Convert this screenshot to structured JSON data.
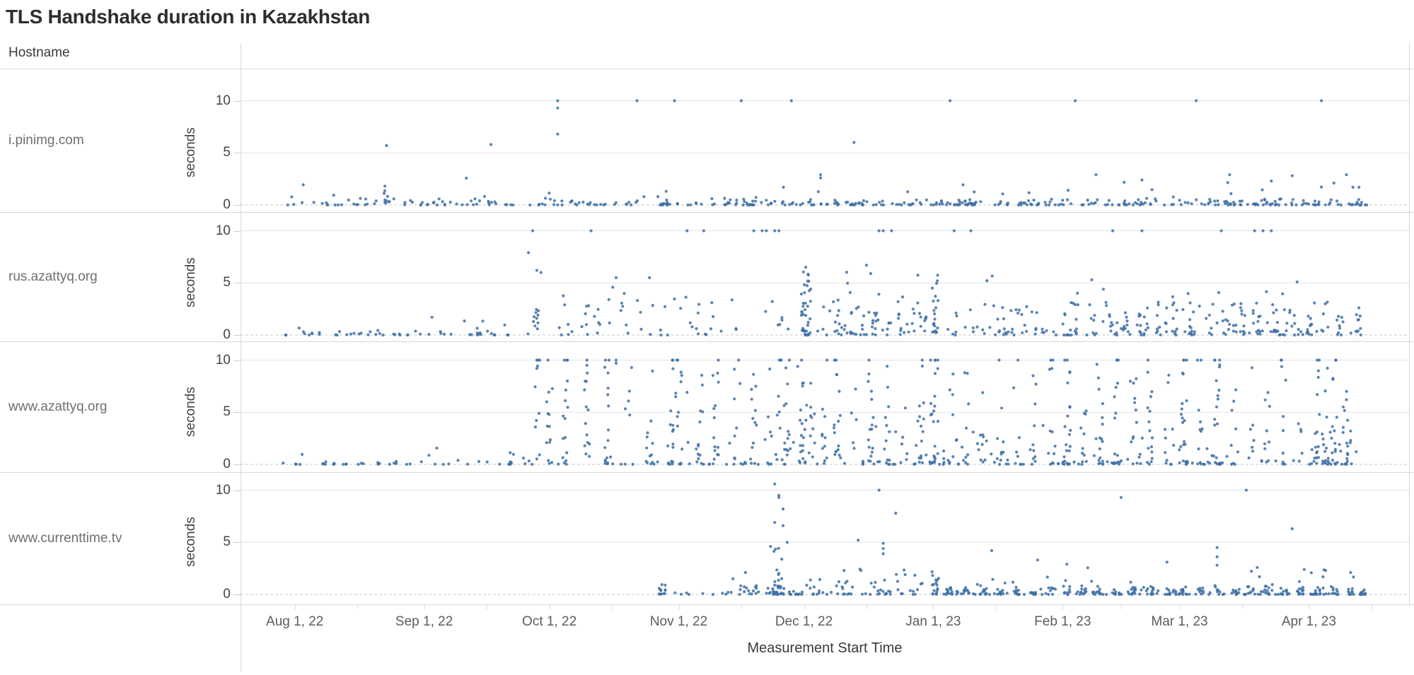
{
  "title": "TLS Handshake duration in Kazakhstan",
  "hostname_header": "Hostname",
  "point_color": "#3d6ea5",
  "colors": {
    "gridline": "#e4e4e4",
    "zero_line": "#c8c8c8",
    "separator": "#d7d7d7",
    "title_text": "#2e2e2e",
    "label_text": "#6f6f6f",
    "axis_text": "#454545"
  },
  "chart_data": {
    "type": "scatter",
    "title": "TLS Handshake duration in Kazakhstan",
    "facet_column": "Hostname",
    "x_axis": {
      "label": "Measurement Start Time",
      "domain_start": "2022-07-19",
      "domain_end": "2023-04-25",
      "ticks": [
        {
          "label": "Aug 1, 22",
          "day": 13
        },
        {
          "label": "Sep 1, 22",
          "day": 44
        },
        {
          "label": "Oct 1, 22",
          "day": 74
        },
        {
          "label": "Nov 1, 22",
          "day": 105
        },
        {
          "label": "Dec 1, 22",
          "day": 135
        },
        {
          "label": "Jan 1, 23",
          "day": 166
        },
        {
          "label": "Feb 1, 23",
          "day": 197
        },
        {
          "label": "Mar 1, 23",
          "day": 225
        },
        {
          "label": "Apr 1, 23",
          "day": 256
        }
      ],
      "minor_tick_days": [
        28,
        59,
        89,
        120,
        150,
        181,
        211,
        240,
        271
      ]
    },
    "y_axis": {
      "label": "seconds",
      "ticks": [
        10,
        5,
        0
      ],
      "gridline_values": [
        10,
        5
      ],
      "zero_line_dashed": true,
      "range": [
        0,
        11
      ]
    },
    "facets": [
      {
        "hostname": "i.pinimg.com",
        "clusters": [
          {
            "kind": "floor",
            "d0": 10,
            "d1": 74,
            "n": 60,
            "ymax": 0.5
          },
          {
            "kind": "floor",
            "d0": 74,
            "d1": 135,
            "n": 85,
            "ymax": 0.5
          },
          {
            "kind": "floor",
            "d0": 135,
            "d1": 270,
            "n": 240,
            "ymax": 0.55
          },
          {
            "kind": "band",
            "d0": 12,
            "d1": 270,
            "n": 42,
            "ymin": 0.55,
            "ymax": 2.6,
            "bias": 2.4
          },
          {
            "kind": "col",
            "d": 35,
            "n": 7,
            "ymin": 0,
            "ymax": 1.9,
            "bias": 1.6,
            "jx": 1.5
          }
        ],
        "outliers": [
          [
            35,
            5.7
          ],
          [
            60,
            5.8
          ],
          [
            76,
            10
          ],
          [
            76,
            9.3
          ],
          [
            76,
            6.8
          ],
          [
            95,
            10
          ],
          [
            104,
            10
          ],
          [
            120,
            10
          ],
          [
            132,
            10
          ],
          [
            139,
            2.9
          ],
          [
            139,
            2.6
          ],
          [
            147,
            6.0
          ],
          [
            170,
            10
          ],
          [
            200,
            10
          ],
          [
            229,
            10
          ],
          [
            259,
            10
          ],
          [
            205,
            2.9
          ],
          [
            216,
            2.4
          ],
          [
            237,
            2.9
          ],
          [
            247,
            2.3
          ],
          [
            252,
            2.8
          ],
          [
            262,
            2.1
          ],
          [
            265,
            2.9
          ],
          [
            268,
            1.7
          ]
        ]
      },
      {
        "hostname": "rus.azattyq.org",
        "clusters": [
          {
            "kind": "floor",
            "d0": 10,
            "d1": 70,
            "n": 50,
            "ymax": 0.45
          },
          {
            "kind": "band",
            "d0": 14,
            "d1": 70,
            "n": 6,
            "ymin": 0.6,
            "ymax": 2.0,
            "bias": 1.8
          },
          {
            "kind": "col",
            "d": 71,
            "n": 10,
            "ymin": 0,
            "ymax": 4.0,
            "bias": 1.5,
            "jx": 2
          },
          {
            "kind": "band",
            "d0": 76,
            "d1": 133,
            "n": 55,
            "ymin": 0,
            "ymax": 3.4,
            "bias": 2.1
          },
          {
            "kind": "band",
            "d0": 76,
            "d1": 133,
            "n": 6,
            "ymin": 3.4,
            "ymax": 4.8,
            "bias": 1.5
          },
          {
            "kind": "col",
            "d": 135.5,
            "n": 38,
            "ymin": 0,
            "ymax": 7.0,
            "bias": 1.9,
            "jx": 2.4
          },
          {
            "kind": "band",
            "d0": 138,
            "d1": 165,
            "n": 40,
            "ymin": 0,
            "ymax": 3.2,
            "bias": 2.0
          },
          {
            "kind": "band",
            "d0": 140,
            "d1": 165,
            "n": 8,
            "ymin": 3.2,
            "ymax": 6.2,
            "bias": 1.6
          },
          {
            "kind": "colseries",
            "days": [
              140,
              143,
              146,
              149,
              152,
              155,
              158,
              161,
              164
            ],
            "nmin": 2,
            "nmax": 5,
            "ymax": 3.0,
            "bias": 1.8,
            "jx": 1.0,
            "p10": 0
          },
          {
            "kind": "col",
            "d": 166.5,
            "n": 20,
            "ymin": 0,
            "ymax": 6.2,
            "bias": 1.8,
            "jx": 1.6
          },
          {
            "kind": "band",
            "d0": 169,
            "d1": 270,
            "n": 110,
            "ymin": 0.3,
            "ymax": 3.0,
            "bias": 1.7
          },
          {
            "kind": "floor",
            "d0": 169,
            "d1": 270,
            "n": 50,
            "ymax": 0.4
          },
          {
            "kind": "band",
            "d0": 172,
            "d1": 268,
            "n": 18,
            "ymin": 3.0,
            "ymax": 5.8,
            "bias": 1.7
          },
          {
            "kind": "colseries",
            "days": [
              200,
              204,
              208,
              212,
              216,
              220,
              224,
              228,
              232,
              236,
              240,
              244,
              248,
              252,
              256,
              260,
              264,
              268
            ],
            "nmin": 3,
            "nmax": 8,
            "ymax": 3.2,
            "bias": 1.7,
            "jx": 1.4,
            "p10": 0
          }
        ],
        "outliers": [
          [
            70,
            10
          ],
          [
            69,
            7.9
          ],
          [
            71,
            6.2
          ],
          [
            72,
            6.0
          ],
          [
            84,
            10
          ],
          [
            90,
            5.5
          ],
          [
            98,
            5.5
          ],
          [
            107,
            10
          ],
          [
            111,
            10
          ],
          [
            123,
            10
          ],
          [
            125,
            10
          ],
          [
            126,
            10
          ],
          [
            128,
            10
          ],
          [
            129,
            10
          ],
          [
            150,
            6.7
          ],
          [
            151,
            5.9
          ],
          [
            153,
            10
          ],
          [
            154,
            10
          ],
          [
            156,
            10
          ],
          [
            171,
            10
          ],
          [
            175,
            10
          ],
          [
            209,
            10
          ],
          [
            216,
            10
          ],
          [
            235,
            10
          ],
          [
            243,
            10
          ],
          [
            245,
            10
          ],
          [
            247,
            10
          ]
        ]
      },
      {
        "hostname": "www.azattyq.org",
        "clusters": [
          {
            "kind": "floor",
            "d0": 10,
            "d1": 70,
            "n": 42,
            "ymax": 0.45
          },
          {
            "kind": "band",
            "d0": 14,
            "d1": 70,
            "n": 4,
            "ymin": 0.6,
            "ymax": 1.6,
            "bias": 1.8
          },
          {
            "kind": "col",
            "d": 65,
            "n": 6,
            "ymin": 0,
            "ymax": 1.5,
            "bias": 1.6,
            "jx": 1
          },
          {
            "kind": "colseries",
            "days": [
              71,
              74,
              78,
              83,
              88,
              93,
              98,
              103,
              105,
              110,
              114,
              119,
              123,
              127,
              129,
              131,
              134,
              135,
              137,
              140,
              143,
              147,
              151,
              155,
              159,
              163,
              166,
              167,
              170,
              174,
              178,
              182,
              186,
              190,
              194,
              198,
              202,
              206,
              210,
              214,
              218,
              222,
              226,
              230,
              234,
              238,
              242,
              246,
              250,
              254,
              258,
              260,
              262,
              265
            ],
            "nmin": 5,
            "nmax": 15,
            "ymax": 9.6,
            "bias": 1.8,
            "jx": 1.6,
            "p10": 0.55
          },
          {
            "kind": "band",
            "d0": 105,
            "d1": 268,
            "n": 100,
            "ymin": 0,
            "ymax": 3.8,
            "bias": 2.2
          },
          {
            "kind": "floor",
            "d0": 74,
            "d1": 268,
            "n": 70,
            "ymax": 0.35
          }
        ],
        "outliers": [
          [
            71,
            10
          ],
          [
            71,
            9.2
          ],
          [
            83,
            10
          ],
          [
            83,
            9.5
          ],
          [
            90,
            9.7
          ],
          [
            90,
            10
          ],
          [
            107,
            6.9
          ],
          [
            265,
            6.2
          ],
          [
            266,
            3.2
          ],
          [
            266,
            2.3
          ]
        ]
      },
      {
        "hostname": "www.currenttime.tv",
        "clusters": [
          {
            "kind": "col",
            "d": 101,
            "n": 12,
            "ymin": 0,
            "ymax": 1.25,
            "bias": 1.7,
            "jx": 1.6
          },
          {
            "kind": "floor",
            "d0": 104,
            "d1": 117,
            "n": 9,
            "ymax": 0.4
          },
          {
            "kind": "band",
            "d0": 117,
            "d1": 125,
            "n": 16,
            "ymin": 0,
            "ymax": 0.9,
            "bias": 2.0
          },
          {
            "kind": "col",
            "d": 128.5,
            "n": 26,
            "ymin": 0,
            "ymax": 4.8,
            "bias": 1.8,
            "jx": 2.4
          },
          {
            "kind": "floor",
            "d0": 126,
            "d1": 135,
            "n": 22,
            "ymax": 0.6
          },
          {
            "kind": "band",
            "d0": 135,
            "d1": 164,
            "n": 55,
            "ymin": 0,
            "ymax": 1.5,
            "bias": 2.3
          },
          {
            "kind": "band",
            "d0": 137,
            "d1": 162,
            "n": 7,
            "ymin": 1.6,
            "ymax": 3.6,
            "bias": 1.5
          },
          {
            "kind": "col",
            "d": 166.5,
            "n": 18,
            "ymin": 0,
            "ymax": 2.4,
            "bias": 1.8,
            "jx": 1.6
          },
          {
            "kind": "floor",
            "d0": 168,
            "d1": 270,
            "n": 130,
            "ymax": 0.5
          },
          {
            "kind": "colseries",
            "days": [
              170,
              174,
              178,
              182,
              186,
              190,
              194,
              198,
              202,
              206,
              210,
              214,
              218,
              222,
              226,
              230,
              234,
              238,
              242,
              246,
              250,
              254,
              258,
              262,
              266,
              269
            ],
            "nmin": 4,
            "nmax": 9,
            "ymax": 0.85,
            "bias": 1.9,
            "jx": 1.5,
            "p10": 0
          },
          {
            "kind": "band",
            "d0": 170,
            "d1": 268,
            "n": 30,
            "ymin": 0.5,
            "ymax": 2.6,
            "bias": 2.0
          }
        ],
        "outliers": [
          [
            118,
            1.5
          ],
          [
            121,
            2.1
          ],
          [
            128,
            10.6
          ],
          [
            129,
            9.5
          ],
          [
            129,
            9.3
          ],
          [
            130,
            8.2
          ],
          [
            128,
            6.9
          ],
          [
            130,
            6.6
          ],
          [
            131,
            5.0
          ],
          [
            127,
            4.6
          ],
          [
            148,
            5.2
          ],
          [
            153,
            10
          ],
          [
            154,
            4.9
          ],
          [
            154,
            4.4
          ],
          [
            154,
            3.9
          ],
          [
            157,
            7.8
          ],
          [
            180,
            4.2
          ],
          [
            191,
            3.3
          ],
          [
            198,
            2.9
          ],
          [
            211,
            9.3
          ],
          [
            222,
            3.1
          ],
          [
            234,
            4.5
          ],
          [
            234,
            3.6
          ],
          [
            234,
            2.8
          ],
          [
            241,
            10
          ],
          [
            252,
            6.3
          ],
          [
            260,
            2.3
          ],
          [
            266,
            2.1
          ]
        ]
      }
    ]
  }
}
